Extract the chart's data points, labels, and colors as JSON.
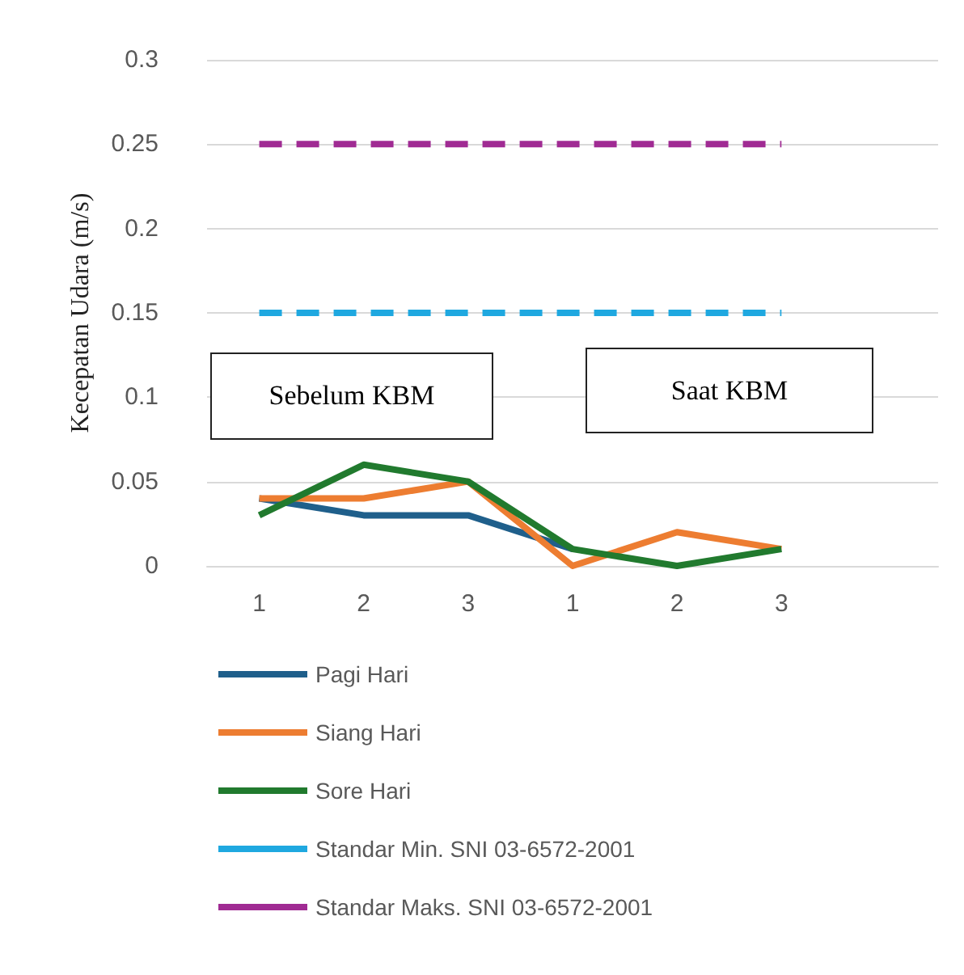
{
  "chart_data": {
    "type": "line",
    "ylabel": "Kecepatan Udara (m/s)",
    "categories": [
      "1",
      "2",
      "3",
      "1",
      "2",
      "3",
      null
    ],
    "series": [
      {
        "name": "Pagi Hari",
        "color": "#1f5f8b",
        "values": [
          0.04,
          0.03,
          0.03,
          0.01,
          null,
          null,
          null
        ]
      },
      {
        "name": "Siang Hari",
        "color": "#ed7d31",
        "values": [
          0.04,
          0.04,
          0.05,
          0,
          0.02,
          0.01,
          null
        ]
      },
      {
        "name": "Sore Hari",
        "color": "#217a2e",
        "values": [
          0.03,
          0.06,
          0.05,
          0.01,
          0,
          0.01,
          null
        ]
      },
      {
        "name": "Standar Min. SNI 03-6572-2001",
        "color": "#1fa8e0",
        "line_style": "dashed",
        "values": [
          0.15,
          0.15,
          0.15,
          0.15,
          0.15,
          0.15,
          null
        ]
      },
      {
        "name": "Standar Maks. SNI 03-6572-2001",
        "color": "#a02b93",
        "line_style": "dashed",
        "values": [
          0.25,
          0.25,
          0.25,
          0.25,
          0.25,
          0.25,
          null
        ]
      }
    ],
    "annotations": [
      "Sebelum KBM",
      "Saat KBM"
    ],
    "ylim": [
      0,
      0.3
    ],
    "yticks": [
      0,
      0.05,
      0.1,
      0.15,
      0.2,
      0.25,
      0.3
    ],
    "grid": "y",
    "legend": "bottom",
    "marker": "none",
    "line_style": "solid"
  }
}
